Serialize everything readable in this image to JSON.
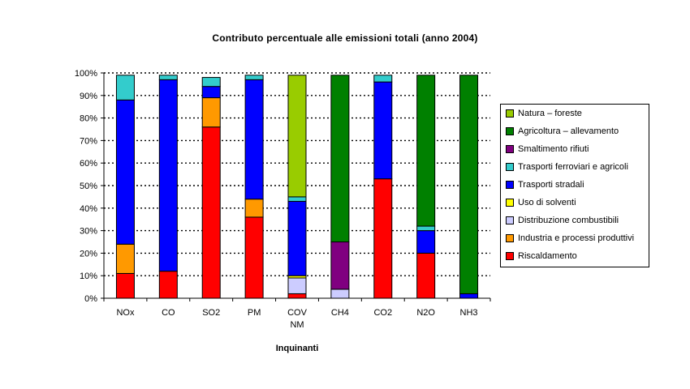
{
  "chart_data": {
    "type": "bar",
    "stacked": true,
    "title": "Contributo percentuale alle emissioni totali (anno 2004)",
    "xlabel": "Inquinanti",
    "ylabel": "",
    "ylim": [
      0,
      100
    ],
    "yticks": [
      "0%",
      "10%",
      "20%",
      "30%",
      "40%",
      "50%",
      "60%",
      "70%",
      "80%",
      "90%",
      "100%"
    ],
    "grid": "horizontal dotted",
    "legend_position": "right",
    "categories": [
      "NOx",
      "CO",
      "SO2",
      "PM",
      "COV NM",
      "CH4",
      "CO2",
      "N2O",
      "NH3"
    ],
    "category_labels": [
      [
        "NOx"
      ],
      [
        "CO"
      ],
      [
        "SO2"
      ],
      [
        "PM"
      ],
      [
        "COV",
        "NM"
      ],
      [
        "CH4"
      ],
      [
        "CO2"
      ],
      [
        "N2O"
      ],
      [
        "NH3"
      ]
    ],
    "series": [
      {
        "name": "Riscaldamento",
        "color": "#FF0000",
        "values": [
          11,
          12,
          76,
          36,
          2,
          0,
          53,
          20,
          0
        ]
      },
      {
        "name": "Industria e processi produttivi",
        "color": "#FF9900",
        "values": [
          13,
          0,
          13,
          8,
          0,
          0,
          0,
          0,
          0
        ]
      },
      {
        "name": "Distribuzione combustibili",
        "color": "#CCCCFF",
        "values": [
          0,
          0,
          0,
          0,
          7,
          4,
          0,
          0,
          0
        ]
      },
      {
        "name": "Uso di solventi",
        "color": "#FFFF00",
        "values": [
          0,
          0,
          0,
          0,
          1,
          0,
          0,
          0,
          0
        ]
      },
      {
        "name": "Trasporti stradali",
        "color": "#0000FF",
        "values": [
          64,
          85,
          5,
          53,
          33,
          0,
          43,
          10,
          2
        ]
      },
      {
        "name": "Trasporti ferroviari e agricoli",
        "color": "#33CCCC",
        "values": [
          11,
          2,
          4,
          2,
          2,
          0,
          3,
          2,
          0
        ]
      },
      {
        "name": "Smaltimento rifiuti",
        "color": "#800080",
        "values": [
          0,
          0,
          0,
          0,
          0,
          21,
          0,
          0,
          0
        ]
      },
      {
        "name": "Agricoltura – allevamento",
        "color": "#008000",
        "values": [
          0,
          0,
          0,
          0,
          0,
          74,
          0,
          67,
          97
        ]
      },
      {
        "name": "Natura – foreste",
        "color": "#99CC00",
        "values": [
          0,
          0,
          0,
          0,
          54,
          0,
          0,
          0,
          0
        ]
      }
    ],
    "legend_order": [
      "Natura – foreste",
      "Agricoltura – allevamento",
      "Smaltimento rifiuti",
      "Trasporti ferroviari e agricoli",
      "Trasporti stradali",
      "Uso di solventi",
      "Distribuzione combustibili",
      "Industria e processi produttivi",
      "Riscaldamento"
    ]
  }
}
